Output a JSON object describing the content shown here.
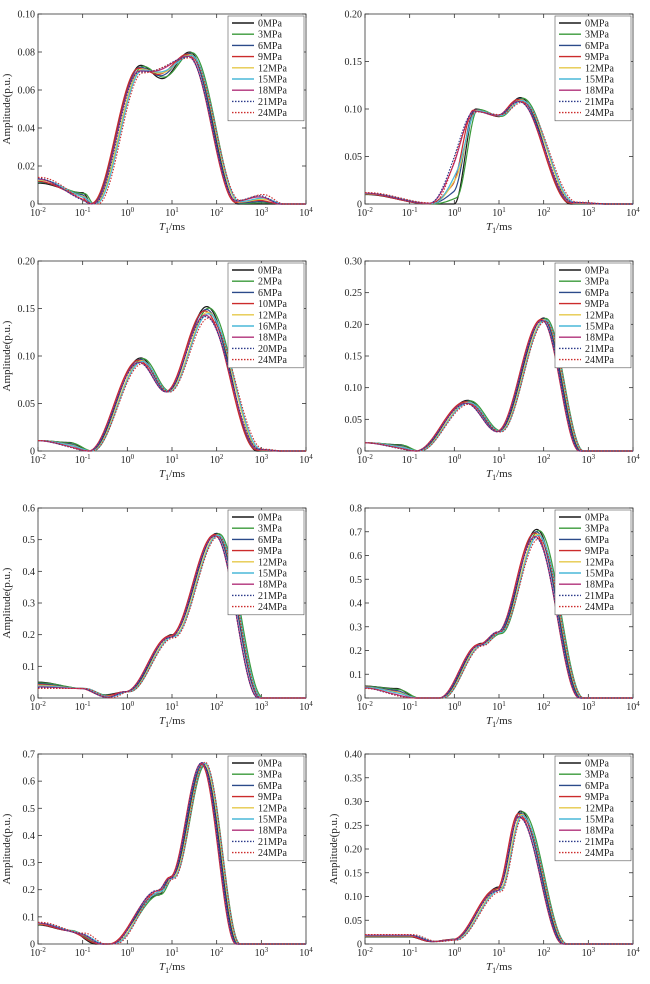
{
  "chart_data": [
    {
      "type": "line",
      "xlabel": "T1/ms",
      "ylabel": "Amplitude(p.u.)",
      "xscale": "log",
      "xlim": [
        0.01,
        10000
      ],
      "ylim": [
        0,
        0.1
      ],
      "yticks": [
        "0",
        "0.02",
        "0.04",
        "0.06",
        "0.08",
        "0.10"
      ],
      "xticks": [
        "10-2",
        "10-1",
        "10^0",
        "10^1",
        "10^2",
        "10^3",
        "10^4"
      ],
      "legend_position": "top-right",
      "series": [
        {
          "name": "0MPa",
          "color": "#1a1a1a",
          "dash": false
        },
        {
          "name": "3MPa",
          "color": "#3a9a3a",
          "dash": false
        },
        {
          "name": "6MPa",
          "color": "#2b4a8a",
          "dash": false
        },
        {
          "name": "9MPa",
          "color": "#cc2b2b",
          "dash": false
        },
        {
          "name": "12MPa",
          "color": "#e6c84a",
          "dash": false
        },
        {
          "name": "15MPa",
          "color": "#4ab8d8",
          "dash": false
        },
        {
          "name": "18MPa",
          "color": "#b0307a",
          "dash": false
        },
        {
          "name": "21MPa",
          "color": "#2b3a8a",
          "dash": true
        },
        {
          "name": "24MPa",
          "color": "#cc2b2b",
          "dash": true
        }
      ],
      "peaks": [
        [
          0.01,
          0.011
        ],
        [
          0.1,
          0.006
        ],
        [
          0.16,
          0.0
        ],
        [
          2,
          0.073
        ],
        [
          6,
          0.066
        ],
        [
          25,
          0.08
        ],
        [
          300,
          0.0
        ],
        [
          1000,
          0.0
        ]
      ],
      "variant_peaks": [
        [
          0.01,
          0.014
        ],
        [
          0.2,
          0.0
        ],
        [
          2,
          0.069
        ],
        [
          25,
          0.077
        ],
        [
          300,
          0.002
        ],
        [
          1000,
          0.005
        ],
        [
          3000,
          0.0
        ]
      ]
    },
    {
      "type": "line",
      "xlabel": "T1/ms",
      "ylabel": "",
      "xscale": "log",
      "xlim": [
        0.01,
        10000
      ],
      "ylim": [
        0,
        0.2
      ],
      "yticks": [
        "0",
        "0.05",
        "0.10",
        "0.15",
        "0.20"
      ],
      "xticks": [
        "10-2",
        "10-1",
        "10^0",
        "10^1",
        "10^2",
        "10^3",
        "10^4"
      ],
      "legend_position": "top-right",
      "series": [
        {
          "name": "0MPa",
          "color": "#1a1a1a",
          "dash": false
        },
        {
          "name": "3MPa",
          "color": "#3a9a3a",
          "dash": false
        },
        {
          "name": "6MPa",
          "color": "#2b4a8a",
          "dash": false
        },
        {
          "name": "9MPa",
          "color": "#cc2b2b",
          "dash": false
        },
        {
          "name": "12MPa",
          "color": "#e6c84a",
          "dash": false
        },
        {
          "name": "15MPa",
          "color": "#4ab8d8",
          "dash": false
        },
        {
          "name": "18MPa",
          "color": "#b0307a",
          "dash": false
        },
        {
          "name": "21MPa",
          "color": "#2b3a8a",
          "dash": true
        },
        {
          "name": "24MPa",
          "color": "#cc2b2b",
          "dash": true
        }
      ],
      "peaks": [
        [
          0.01,
          0.01
        ],
        [
          0.3,
          0.0
        ],
        [
          1,
          0.0
        ],
        [
          3,
          0.1
        ],
        [
          10,
          0.092
        ],
        [
          30,
          0.112
        ],
        [
          400,
          0.0
        ],
        [
          3000,
          0.0
        ]
      ],
      "variant_peaks": [
        [
          0.01,
          0.012
        ],
        [
          0.3,
          0.001
        ],
        [
          3,
          0.097
        ],
        [
          10,
          0.094
        ],
        [
          30,
          0.107
        ],
        [
          500,
          0.002
        ],
        [
          3000,
          0.0
        ]
      ]
    },
    {
      "type": "line",
      "xlabel": "T1/ms",
      "ylabel": "Amplitude(p.u.)",
      "xscale": "log",
      "xlim": [
        0.01,
        10000
      ],
      "ylim": [
        0,
        0.2
      ],
      "yticks": [
        "0",
        "0.05",
        "0.10",
        "0.15",
        "0.20"
      ],
      "xticks": [
        "10-2",
        "10-1",
        "10^0",
        "10^1",
        "10^2",
        "10^3",
        "10^4"
      ],
      "legend_position": "top-right",
      "series": [
        {
          "name": "0MPa",
          "color": "#1a1a1a",
          "dash": false
        },
        {
          "name": "2MPa",
          "color": "#3a9a3a",
          "dash": false
        },
        {
          "name": "6MPa",
          "color": "#2b4a8a",
          "dash": false
        },
        {
          "name": "10MPa",
          "color": "#cc2b2b",
          "dash": false
        },
        {
          "name": "12MPa",
          "color": "#e6c84a",
          "dash": false
        },
        {
          "name": "16MPa",
          "color": "#4ab8d8",
          "dash": false
        },
        {
          "name": "18MPa",
          "color": "#b0307a",
          "dash": false
        },
        {
          "name": "20MPa",
          "color": "#2b3a8a",
          "dash": true
        },
        {
          "name": "24MPa",
          "color": "#cc2b2b",
          "dash": true
        }
      ],
      "peaks": [
        [
          0.01,
          0.011
        ],
        [
          0.05,
          0.009
        ],
        [
          0.15,
          0.0
        ],
        [
          2,
          0.098
        ],
        [
          8,
          0.063
        ],
        [
          60,
          0.152
        ],
        [
          800,
          0.0
        ],
        [
          3000,
          0.0
        ]
      ],
      "variant_peaks": [
        [
          0.01,
          0.011
        ],
        [
          0.15,
          0.0
        ],
        [
          2,
          0.092
        ],
        [
          8,
          0.062
        ],
        [
          60,
          0.14
        ],
        [
          1000,
          0.002
        ],
        [
          3000,
          0.0
        ]
      ]
    },
    {
      "type": "line",
      "xlabel": "T1/ms",
      "ylabel": "",
      "xscale": "log",
      "xlim": [
        0.01,
        10000
      ],
      "ylim": [
        0,
        0.3
      ],
      "yticks": [
        "0",
        "0.05",
        "0.10",
        "0.15",
        "0.20",
        "0.25",
        "0.30"
      ],
      "xticks": [
        "10-2",
        "10-1",
        "10^0",
        "10^1",
        "10^2",
        "10^3",
        "10^4"
      ],
      "legend_position": "top-right",
      "series": [
        {
          "name": "0MPa",
          "color": "#1a1a1a",
          "dash": false
        },
        {
          "name": "3MPa",
          "color": "#3a9a3a",
          "dash": false
        },
        {
          "name": "6MPa",
          "color": "#2b4a8a",
          "dash": false
        },
        {
          "name": "9MPa",
          "color": "#cc2b2b",
          "dash": false
        },
        {
          "name": "12MPa",
          "color": "#e6c84a",
          "dash": false
        },
        {
          "name": "15MPa",
          "color": "#4ab8d8",
          "dash": false
        },
        {
          "name": "18MPa",
          "color": "#b0307a",
          "dash": false
        },
        {
          "name": "21MPa",
          "color": "#2b3a8a",
          "dash": true
        },
        {
          "name": "24MPa",
          "color": "#cc2b2b",
          "dash": true
        }
      ],
      "peaks": [
        [
          0.01,
          0.013
        ],
        [
          0.06,
          0.01
        ],
        [
          0.15,
          0.0
        ],
        [
          2,
          0.08
        ],
        [
          10,
          0.032
        ],
        [
          100,
          0.21
        ],
        [
          700,
          0.0
        ],
        [
          3000,
          0.0
        ]
      ],
      "variant_peaks": [
        [
          0.01,
          0.013
        ],
        [
          0.15,
          0.0
        ],
        [
          2,
          0.074
        ],
        [
          10,
          0.03
        ],
        [
          100,
          0.205
        ],
        [
          700,
          0.0
        ],
        [
          3000,
          0.0
        ]
      ]
    },
    {
      "type": "line",
      "xlabel": "T1/ms",
      "ylabel": "Amplitude(p.u.)",
      "xscale": "log",
      "xlim": [
        0.01,
        10000
      ],
      "ylim": [
        0,
        0.6
      ],
      "yticks": [
        "0",
        "0.1",
        "0.2",
        "0.3",
        "0.4",
        "0.5",
        "0.6"
      ],
      "xticks": [
        "10-2",
        "10-1",
        "10^0",
        "10^1",
        "10^2",
        "10^3",
        "10^4"
      ],
      "legend_position": "top-right",
      "series": [
        {
          "name": "0MPa",
          "color": "#1a1a1a",
          "dash": false
        },
        {
          "name": "3MPa",
          "color": "#3a9a3a",
          "dash": false
        },
        {
          "name": "6MPa",
          "color": "#2b4a8a",
          "dash": false
        },
        {
          "name": "9MPa",
          "color": "#cc2b2b",
          "dash": false
        },
        {
          "name": "12MPa",
          "color": "#e6c84a",
          "dash": false
        },
        {
          "name": "15MPa",
          "color": "#4ab8d8",
          "dash": false
        },
        {
          "name": "18MPa",
          "color": "#b0307a",
          "dash": false
        },
        {
          "name": "21MPa",
          "color": "#2b3a8a",
          "dash": true
        },
        {
          "name": "24MPa",
          "color": "#cc2b2b",
          "dash": true
        }
      ],
      "peaks": [
        [
          0.01,
          0.05
        ],
        [
          0.1,
          0.03
        ],
        [
          0.3,
          0.01
        ],
        [
          1,
          0.02
        ],
        [
          10,
          0.2
        ],
        [
          100,
          0.52
        ],
        [
          1000,
          0.0
        ],
        [
          3000,
          0.0
        ]
      ],
      "variant_peaks": [
        [
          0.01,
          0.03
        ],
        [
          0.1,
          0.03
        ],
        [
          0.4,
          0.0
        ],
        [
          1,
          0.02
        ],
        [
          10,
          0.19
        ],
        [
          100,
          0.51
        ],
        [
          900,
          0.0
        ],
        [
          3000,
          0.0
        ]
      ]
    },
    {
      "type": "line",
      "xlabel": "T1/ms",
      "ylabel": "",
      "xscale": "log",
      "xlim": [
        0.01,
        10000
      ],
      "ylim": [
        0,
        0.8
      ],
      "yticks": [
        "0",
        "0.1",
        "0.2",
        "0.3",
        "0.4",
        "0.5",
        "0.6",
        "0.7",
        "0.8"
      ],
      "xticks": [
        "10-2",
        "10-1",
        "10^0",
        "10^1",
        "10^2",
        "10^3",
        "10^4"
      ],
      "legend_position": "top-right",
      "series": [
        {
          "name": "0MPa",
          "color": "#1a1a1a",
          "dash": false
        },
        {
          "name": "3MPa",
          "color": "#3a9a3a",
          "dash": false
        },
        {
          "name": "6MPa",
          "color": "#2b4a8a",
          "dash": false
        },
        {
          "name": "9MPa",
          "color": "#cc2b2b",
          "dash": false
        },
        {
          "name": "12MPa",
          "color": "#e6c84a",
          "dash": false
        },
        {
          "name": "15MPa",
          "color": "#4ab8d8",
          "dash": false
        },
        {
          "name": "18MPa",
          "color": "#b0307a",
          "dash": false
        },
        {
          "name": "21MPa",
          "color": "#2b3a8a",
          "dash": true
        },
        {
          "name": "24MPa",
          "color": "#cc2b2b",
          "dash": true
        }
      ],
      "peaks": [
        [
          0.01,
          0.05
        ],
        [
          0.05,
          0.04
        ],
        [
          0.15,
          0.0
        ],
        [
          0.5,
          0.0
        ],
        [
          4,
          0.23
        ],
        [
          10,
          0.27
        ],
        [
          70,
          0.71
        ],
        [
          700,
          0.0
        ],
        [
          3000,
          0.0
        ]
      ],
      "variant_peaks": [
        [
          0.01,
          0.04
        ],
        [
          0.1,
          0.0
        ],
        [
          0.5,
          0.0
        ],
        [
          4,
          0.22
        ],
        [
          10,
          0.28
        ],
        [
          70,
          0.67
        ],
        [
          700,
          0.0
        ],
        [
          3000,
          0.0
        ]
      ]
    },
    {
      "type": "line",
      "xlabel": "T1/ms",
      "ylabel": "Amplitude(p.u.)",
      "xscale": "log",
      "xlim": [
        0.01,
        10000
      ],
      "ylim": [
        0,
        0.7
      ],
      "yticks": [
        "0",
        "0.1",
        "0.2",
        "0.3",
        "0.4",
        "0.5",
        "0.6",
        "0.7"
      ],
      "xticks": [
        "10-2",
        "10-1",
        "10^0",
        "10^1",
        "10^2",
        "10^3",
        "10^4"
      ],
      "legend_position": "top-right",
      "series": [
        {
          "name": "0MPa",
          "color": "#1a1a1a",
          "dash": false
        },
        {
          "name": "3MPa",
          "color": "#3a9a3a",
          "dash": false
        },
        {
          "name": "6MPa",
          "color": "#2b4a8a",
          "dash": false
        },
        {
          "name": "9MPa",
          "color": "#cc2b2b",
          "dash": false
        },
        {
          "name": "12MPa",
          "color": "#e6c84a",
          "dash": false
        },
        {
          "name": "15MPa",
          "color": "#4ab8d8",
          "dash": false
        },
        {
          "name": "18MPa",
          "color": "#b0307a",
          "dash": false
        },
        {
          "name": "21MPa",
          "color": "#2b3a8a",
          "dash": true
        },
        {
          "name": "24MPa",
          "color": "#cc2b2b",
          "dash": true
        }
      ],
      "peaks": [
        [
          0.01,
          0.07
        ],
        [
          0.05,
          0.05
        ],
        [
          0.2,
          0.0
        ],
        [
          0.4,
          0.0
        ],
        [
          5,
          0.18
        ],
        [
          10,
          0.25
        ],
        [
          50,
          0.66
        ],
        [
          300,
          0.0
        ],
        [
          3000,
          0.0
        ]
      ],
      "variant_peaks": [
        [
          0.01,
          0.08
        ],
        [
          0.1,
          0.04
        ],
        [
          0.3,
          0.0
        ],
        [
          0.5,
          0.0
        ],
        [
          5,
          0.2
        ],
        [
          10,
          0.24
        ],
        [
          50,
          0.67
        ],
        [
          300,
          0.0
        ],
        [
          3000,
          0.0
        ]
      ]
    },
    {
      "type": "line",
      "xlabel": "T1/ms",
      "ylabel": "Amplitude(p.u.)",
      "xscale": "log",
      "xlim": [
        0.01,
        10000
      ],
      "ylim": [
        0,
        0.4
      ],
      "yticks": [
        "0",
        "0.05",
        "0.10",
        "0.15",
        "0.20",
        "0.25",
        "0.30",
        "0.35",
        "0.40"
      ],
      "xticks": [
        "10-2",
        "10-1",
        "10^0",
        "10^1",
        "10^2",
        "10^3",
        "10^4"
      ],
      "legend_position": "top-right",
      "series": [
        {
          "name": "0MPa",
          "color": "#1a1a1a",
          "dash": false
        },
        {
          "name": "3MPa",
          "color": "#3a9a3a",
          "dash": false
        },
        {
          "name": "6MPa",
          "color": "#2b4a8a",
          "dash": false
        },
        {
          "name": "9MPa",
          "color": "#cc2b2b",
          "dash": false
        },
        {
          "name": "12MPa",
          "color": "#e6c84a",
          "dash": false
        },
        {
          "name": "15MPa",
          "color": "#4ab8d8",
          "dash": false
        },
        {
          "name": "18MPa",
          "color": "#b0307a",
          "dash": false
        },
        {
          "name": "21MPa",
          "color": "#2b3a8a",
          "dash": true
        },
        {
          "name": "24MPa",
          "color": "#cc2b2b",
          "dash": true
        }
      ],
      "peaks": [
        [
          0.01,
          0.015
        ],
        [
          0.1,
          0.015
        ],
        [
          0.3,
          0.005
        ],
        [
          1,
          0.01
        ],
        [
          10,
          0.12
        ],
        [
          30,
          0.28
        ],
        [
          300,
          0.0
        ],
        [
          3000,
          0.0
        ]
      ],
      "variant_peaks": [
        [
          0.01,
          0.02
        ],
        [
          0.1,
          0.02
        ],
        [
          0.4,
          0.005
        ],
        [
          1,
          0.008
        ],
        [
          10,
          0.11
        ],
        [
          30,
          0.265
        ],
        [
          300,
          0.0
        ],
        [
          3000,
          0.0
        ]
      ]
    }
  ]
}
